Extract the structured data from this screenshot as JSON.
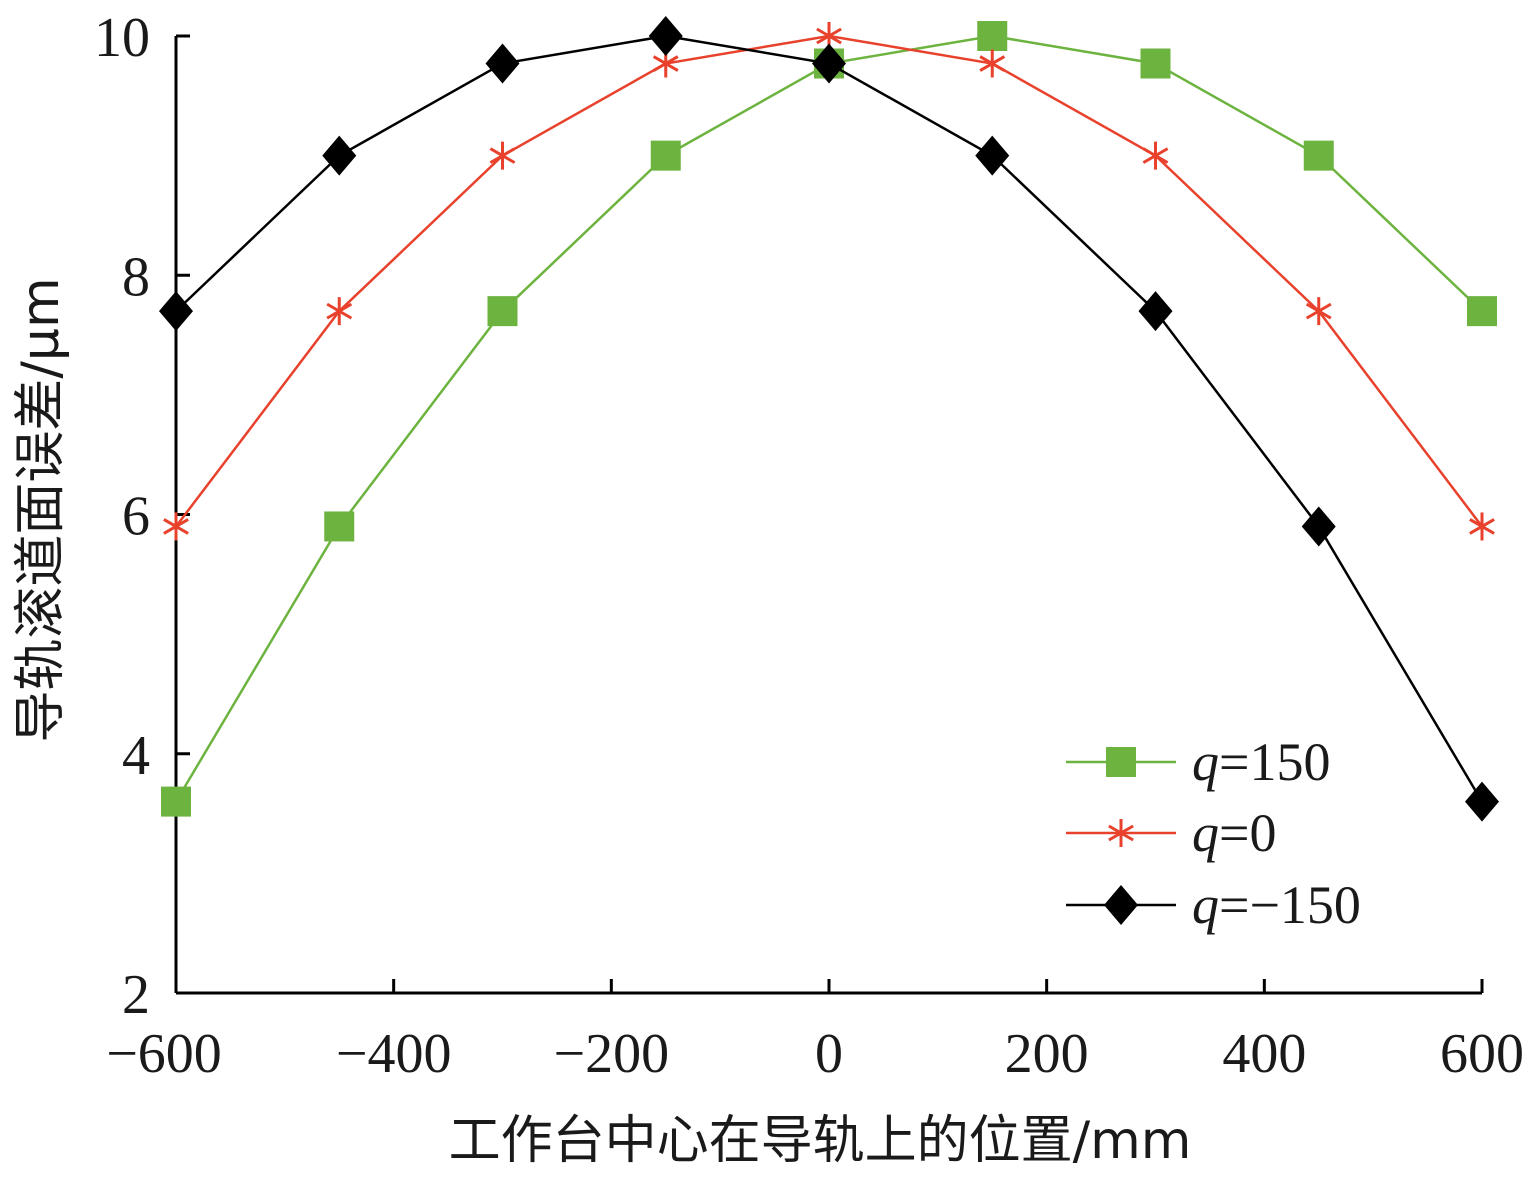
{
  "chart_data": {
    "type": "line",
    "xlabel": "工作台中心在导轨上的位置/mm",
    "ylabel": "导轨滚道面误差/μm",
    "xlim": [
      -600,
      600
    ],
    "ylim": [
      2,
      10
    ],
    "xticks": [
      -600,
      -400,
      -200,
      0,
      200,
      400,
      600
    ],
    "yticks": [
      2,
      4,
      6,
      8,
      10
    ],
    "xtick_labels": [
      "−600",
      "−400",
      "−200",
      "0",
      "200",
      "400",
      "600"
    ],
    "ytick_labels": [
      "2",
      "4",
      "6",
      "8",
      "10"
    ],
    "grid": false,
    "legend_position": "bottom-right",
    "x": [
      -600,
      -450,
      -300,
      -150,
      0,
      150,
      300,
      450,
      600
    ],
    "series": [
      {
        "name": "q=150",
        "legend_var": "q",
        "legend_value": "=150",
        "marker": "square",
        "color": "#6db33f",
        "values": [
          3.6,
          5.9,
          7.7,
          9.0,
          9.77,
          10.0,
          9.77,
          9.0,
          7.7
        ]
      },
      {
        "name": "q=0",
        "legend_var": "q",
        "legend_value": "=0",
        "marker": "asterisk",
        "color": "#e8412c",
        "values": [
          5.9,
          7.7,
          9.0,
          9.77,
          10.0,
          9.77,
          9.0,
          7.7,
          5.9
        ]
      },
      {
        "name": "q=−150",
        "legend_var": "q",
        "legend_value": "=−150",
        "marker": "diamond",
        "color": "#000000",
        "values": [
          7.7,
          9.0,
          9.77,
          10.0,
          9.77,
          9.0,
          7.7,
          5.9,
          3.6
        ]
      }
    ]
  }
}
